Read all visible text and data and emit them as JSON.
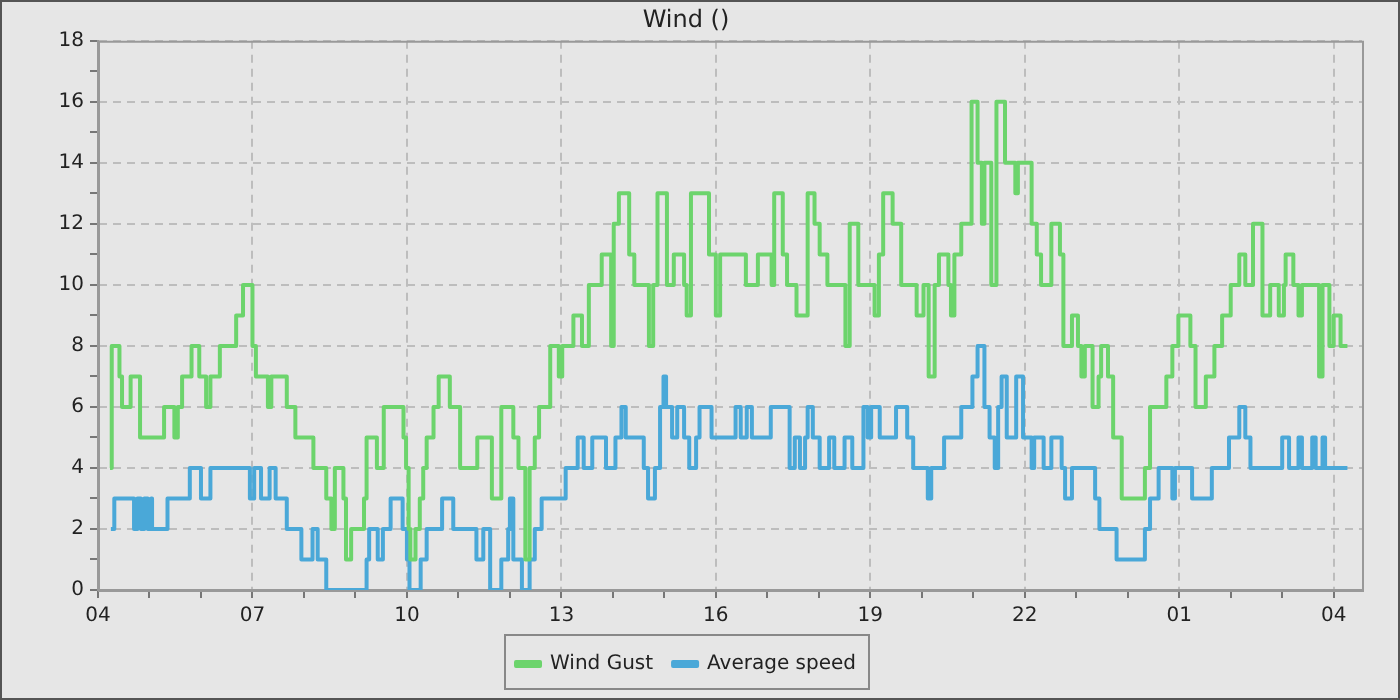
{
  "chart_data": {
    "type": "step",
    "title": "Wind ()",
    "xlim": [
      "--01-01T04:00",
      "--01-02T04:33"
    ],
    "ylim": [
      0,
      18
    ],
    "xticks": [
      {
        "value": "--01-01T04:00",
        "label": "04"
      },
      {
        "value": "--01-01T05:00",
        "label": null
      },
      {
        "value": "--01-01T06:00",
        "label": null
      },
      {
        "value": "--01-01T07:00",
        "label": "07"
      },
      {
        "value": "--01-01T08:00",
        "label": null
      },
      {
        "value": "--01-01T09:00",
        "label": null
      },
      {
        "value": "--01-01T10:00",
        "label": "10"
      },
      {
        "value": "--01-01T11:00",
        "label": null
      },
      {
        "value": "--01-01T12:00",
        "label": null
      },
      {
        "value": "--01-01T13:00",
        "label": "13"
      },
      {
        "value": "--01-01T14:00",
        "label": null
      },
      {
        "value": "--01-01T15:00",
        "label": null
      },
      {
        "value": "--01-01T16:00",
        "label": "16"
      },
      {
        "value": "--01-01T17:00",
        "label": null
      },
      {
        "value": "--01-01T18:00",
        "label": null
      },
      {
        "value": "--01-01T19:00",
        "label": "19"
      },
      {
        "value": "--01-01T20:00",
        "label": null
      },
      {
        "value": "--01-01T21:00",
        "label": null
      },
      {
        "value": "--01-01T22:00",
        "label": "22"
      },
      {
        "value": "--01-01T23:00",
        "label": null
      },
      {
        "value": "--01-02T00:00",
        "label": null
      },
      {
        "value": "--01-02T01:00",
        "label": "01"
      },
      {
        "value": "--01-02T02:00",
        "label": null
      },
      {
        "value": "--01-02T03:00",
        "label": null
      },
      {
        "value": "--01-02T04:00",
        "label": "04"
      }
    ],
    "yticks": [
      0,
      {
        "value": 1,
        "label": null
      },
      2,
      {
        "value": 3,
        "label": null
      },
      4,
      {
        "value": 5,
        "label": null
      },
      6,
      {
        "value": 7,
        "label": null
      },
      8,
      {
        "value": 9,
        "label": null
      },
      10,
      {
        "value": 11,
        "label": null
      },
      12,
      {
        "value": 13,
        "label": null
      },
      14,
      {
        "value": 15,
        "label": null
      },
      16,
      {
        "value": 17,
        "label": null
      },
      18
    ],
    "grid": true,
    "legend": "bottom",
    "marker": "none",
    "series": [
      {
        "name": "Wind Gust",
        "color": "#6cd46c",
        "x": [
          "--01-01T04:14",
          "--01-01T04:16",
          "--01-01T04:25",
          "--01-01T04:28",
          "--01-01T04:38",
          "--01-01T04:49",
          "--01-01T05:17",
          "--01-01T05:29",
          "--01-01T05:33",
          "--01-01T05:38",
          "--01-01T05:49",
          "--01-01T05:58",
          "--01-01T06:06",
          "--01-01T06:11",
          "--01-01T06:22",
          "--01-01T06:41",
          "--01-01T06:49",
          "--01-01T07:00",
          "--01-01T07:04",
          "--01-01T07:18",
          "--01-01T07:22",
          "--01-01T07:40",
          "--01-01T07:50",
          "--01-01T08:11",
          "--01-01T08:26",
          "--01-01T08:32",
          "--01-01T08:36",
          "--01-01T08:46",
          "--01-01T08:49",
          "--01-01T08:55",
          "--01-01T09:10",
          "--01-01T09:13",
          "--01-01T09:25",
          "--01-01T09:33",
          "--01-01T09:56",
          "--01-01T09:59",
          "--01-01T10:02",
          "--01-01T10:04",
          "--01-01T10:10",
          "--01-01T10:15",
          "--01-01T10:19",
          "--01-01T10:23",
          "--01-01T10:31",
          "--01-01T10:37",
          "--01-01T10:50",
          "--01-01T11:02",
          "--01-01T11:22",
          "--01-01T11:39",
          "--01-01T11:50",
          "--01-01T12:04",
          "--01-01T12:10",
          "--01-01T12:18",
          "--01-01T12:23",
          "--01-01T12:29",
          "--01-01T12:34",
          "--01-01T12:47",
          "--01-01T12:57",
          "--01-01T13:01",
          "--01-01T13:14",
          "--01-01T13:24",
          "--01-01T13:32",
          "--01-01T13:47",
          "--01-01T13:58",
          "--01-01T14:01",
          "--01-01T14:07",
          "--01-01T14:19",
          "--01-01T14:25",
          "--01-01T14:42",
          "--01-01T14:47",
          "--01-01T14:52",
          "--01-01T15:03",
          "--01-01T15:11",
          "--01-01T15:23",
          "--01-01T15:26",
          "--01-01T15:31",
          "--01-01T15:52",
          "--01-01T16:00",
          "--01-01T16:05",
          "--01-01T16:35",
          "--01-01T16:49",
          "--01-01T17:05",
          "--01-01T17:08",
          "--01-01T17:18",
          "--01-01T17:23",
          "--01-01T17:34",
          "--01-01T17:47",
          "--01-01T17:55",
          "--01-01T18:01",
          "--01-01T18:10",
          "--01-01T18:31",
          "--01-01T18:36",
          "--01-01T18:46",
          "--01-01T19:05",
          "--01-01T19:10",
          "--01-01T19:15",
          "--01-01T19:26",
          "--01-01T19:36",
          "--01-01T19:54",
          "--01-01T20:02",
          "--01-01T20:08",
          "--01-01T20:15",
          "--01-01T20:20",
          "--01-01T20:31",
          "--01-01T20:34",
          "--01-01T20:38",
          "--01-01T20:46",
          "--01-01T20:58",
          "--01-01T21:05",
          "--01-01T21:10",
          "--01-01T21:13",
          "--01-01T21:21",
          "--01-01T21:27",
          "--01-01T21:37",
          "--01-01T21:49",
          "--01-01T21:52",
          "--01-01T22:08",
          "--01-01T22:14",
          "--01-01T22:19",
          "--01-01T22:31",
          "--01-01T22:41",
          "--01-01T22:45",
          "--01-01T22:55",
          "--01-01T23:02",
          "--01-01T23:06",
          "--01-01T23:10",
          "--01-01T23:19",
          "--01-01T23:26",
          "--01-01T23:29",
          "--01-01T23:37",
          "--01-01T23:43",
          "--01-01T23:53",
          "--01-02T00:20",
          "--01-02T00:26",
          "--01-02T00:45",
          "--01-02T00:52",
          "--01-02T00:59",
          "--01-02T01:13",
          "--01-02T01:19",
          "--01-02T01:31",
          "--01-02T01:41",
          "--01-02T01:50",
          "--01-02T02:00",
          "--01-02T02:10",
          "--01-02T02:17",
          "--01-02T02:26",
          "--01-02T02:37",
          "--01-02T02:46",
          "--01-02T02:56",
          "--01-02T03:02",
          "--01-02T03:04",
          "--01-02T03:13",
          "--01-02T03:19",
          "--01-02T03:23",
          "--01-02T03:43",
          "--01-02T03:47",
          "--01-02T03:55",
          "--01-02T04:00",
          "--01-02T04:08",
          "--01-02T04:16"
        ],
        "values": [
          4,
          8,
          7,
          6,
          7,
          5,
          6,
          5,
          6,
          7,
          8,
          7,
          6,
          7,
          8,
          9,
          10,
          8,
          7,
          6,
          7,
          6,
          5,
          4,
          3,
          2,
          4,
          3,
          1,
          2,
          3,
          5,
          4,
          6,
          5,
          4,
          2,
          1,
          2,
          3,
          4,
          5,
          6,
          7,
          6,
          4,
          5,
          3,
          6,
          5,
          4,
          1,
          4,
          5,
          6,
          8,
          7,
          8,
          9,
          8,
          10,
          11,
          8,
          12,
          13,
          11,
          10,
          8,
          10,
          13,
          10,
          11,
          10,
          9,
          13,
          11,
          9,
          11,
          10,
          11,
          10,
          13,
          11,
          10,
          9,
          13,
          12,
          11,
          10,
          8,
          12,
          10,
          9,
          11,
          13,
          12,
          10,
          9,
          10,
          7,
          10,
          11,
          10,
          9,
          11,
          12,
          16,
          14,
          12,
          14,
          10,
          16,
          14,
          13,
          14,
          12,
          11,
          10,
          12,
          11,
          8,
          9,
          8,
          7,
          8,
          6,
          7,
          8,
          7,
          5,
          3,
          4,
          6,
          7,
          8,
          9,
          8,
          6,
          7,
          8,
          9,
          10,
          11,
          10,
          12,
          9,
          10,
          9,
          10,
          11,
          10,
          9,
          10,
          7,
          10,
          8,
          9,
          8,
          8
        ]
      },
      {
        "name": "Average speed",
        "color": "#4aa8d8",
        "x": [
          "--01-01T04:15",
          "--01-01T04:19",
          "--01-01T04:42",
          "--01-01T04:46",
          "--01-01T04:50",
          "--01-01T04:54",
          "--01-01T04:58",
          "--01-01T05:02",
          "--01-01T05:03",
          "--01-01T05:21",
          "--01-01T05:47",
          "--01-01T06:00",
          "--01-01T06:11",
          "--01-01T06:57",
          "--01-01T07:02",
          "--01-01T07:10",
          "--01-01T07:20",
          "--01-01T07:27",
          "--01-01T07:40",
          "--01-01T07:57",
          "--01-01T08:10",
          "--01-01T08:16",
          "--01-01T08:26",
          "--01-01T09:13",
          "--01-01T09:16",
          "--01-01T09:26",
          "--01-01T09:32",
          "--01-01T09:41",
          "--01-01T09:55",
          "--01-01T10:00",
          "--01-01T10:03",
          "--01-01T10:16",
          "--01-01T10:23",
          "--01-01T10:41",
          "--01-01T10:54",
          "--01-01T11:21",
          "--01-01T11:29",
          "--01-01T11:37",
          "--01-01T11:50",
          "--01-01T11:58",
          "--01-01T12:00",
          "--01-01T12:04",
          "--01-01T12:14",
          "--01-01T12:23",
          "--01-01T12:29",
          "--01-01T12:37",
          "--01-01T13:05",
          "--01-01T13:19",
          "--01-01T13:26",
          "--01-01T13:36",
          "--01-01T13:52",
          "--01-01T14:03",
          "--01-01T14:10",
          "--01-01T14:15",
          "--01-01T14:36",
          "--01-01T14:41",
          "--01-01T14:49",
          "--01-01T14:55",
          "--01-01T14:59",
          "--01-01T15:02",
          "--01-01T15:09",
          "--01-01T15:15",
          "--01-01T15:23",
          "--01-01T15:29",
          "--01-01T15:37",
          "--01-01T15:41",
          "--01-01T15:55",
          "--01-01T16:23",
          "--01-01T16:29",
          "--01-01T16:36",
          "--01-01T16:42",
          "--01-01T17:04",
          "--01-01T17:26",
          "--01-01T17:32",
          "--01-01T17:38",
          "--01-01T17:44",
          "--01-01T17:47",
          "--01-01T17:53",
          "--01-01T18:01",
          "--01-01T18:12",
          "--01-01T18:18",
          "--01-01T18:30",
          "--01-01T18:39",
          "--01-01T18:52",
          "--01-01T18:57",
          "--01-01T19:01",
          "--01-01T19:11",
          "--01-01T19:30",
          "--01-01T19:43",
          "--01-01T19:50",
          "--01-01T20:07",
          "--01-01T20:11",
          "--01-01T20:26",
          "--01-01T20:46",
          "--01-01T20:59",
          "--01-01T21:05",
          "--01-01T21:13",
          "--01-01T21:19",
          "--01-01T21:25",
          "--01-01T21:29",
          "--01-01T21:33",
          "--01-01T21:39",
          "--01-01T21:50",
          "--01-01T21:58",
          "--01-01T22:08",
          "--01-01T22:11",
          "--01-01T22:22",
          "--01-01T22:31",
          "--01-01T22:43",
          "--01-01T22:47",
          "--01-01T22:55",
          "--01-01T23:22",
          "--01-01T23:27",
          "--01-01T23:47",
          "--01-02T00:20",
          "--01-02T00:26",
          "--01-02T00:36",
          "--01-02T00:52",
          "--01-02T00:55",
          "--01-02T01:15",
          "--01-02T01:38",
          "--01-02T01:58",
          "--01-02T02:10",
          "--01-02T02:17",
          "--01-02T02:23",
          "--01-02T03:00",
          "--01-02T03:08",
          "--01-02T03:19",
          "--01-02T03:23",
          "--01-02T03:35",
          "--01-02T03:39",
          "--01-02T03:47",
          "--01-02T03:50",
          "--01-02T04:16"
        ],
        "values": [
          2,
          3,
          2,
          3,
          2,
          3,
          2,
          3,
          2,
          3,
          4,
          3,
          4,
          3,
          4,
          3,
          4,
          3,
          2,
          1,
          2,
          1,
          0,
          1,
          2,
          1,
          2,
          3,
          2,
          1,
          0,
          1,
          2,
          3,
          2,
          1,
          2,
          0,
          1,
          2,
          3,
          1,
          0,
          1,
          2,
          3,
          4,
          5,
          4,
          5,
          4,
          5,
          6,
          5,
          4,
          3,
          4,
          6,
          7,
          6,
          5,
          6,
          5,
          4,
          5,
          6,
          5,
          6,
          5,
          6,
          5,
          6,
          4,
          5,
          4,
          5,
          6,
          5,
          4,
          5,
          4,
          5,
          4,
          6,
          5,
          6,
          5,
          6,
          5,
          4,
          3,
          4,
          5,
          6,
          7,
          8,
          6,
          5,
          4,
          6,
          7,
          5,
          7,
          5,
          4,
          5,
          4,
          5,
          4,
          3,
          4,
          3,
          2,
          1,
          2,
          3,
          4,
          3,
          4,
          3,
          4,
          5,
          6,
          5,
          4,
          5,
          4,
          5,
          4,
          5,
          4,
          5,
          4,
          4
        ]
      }
    ]
  }
}
